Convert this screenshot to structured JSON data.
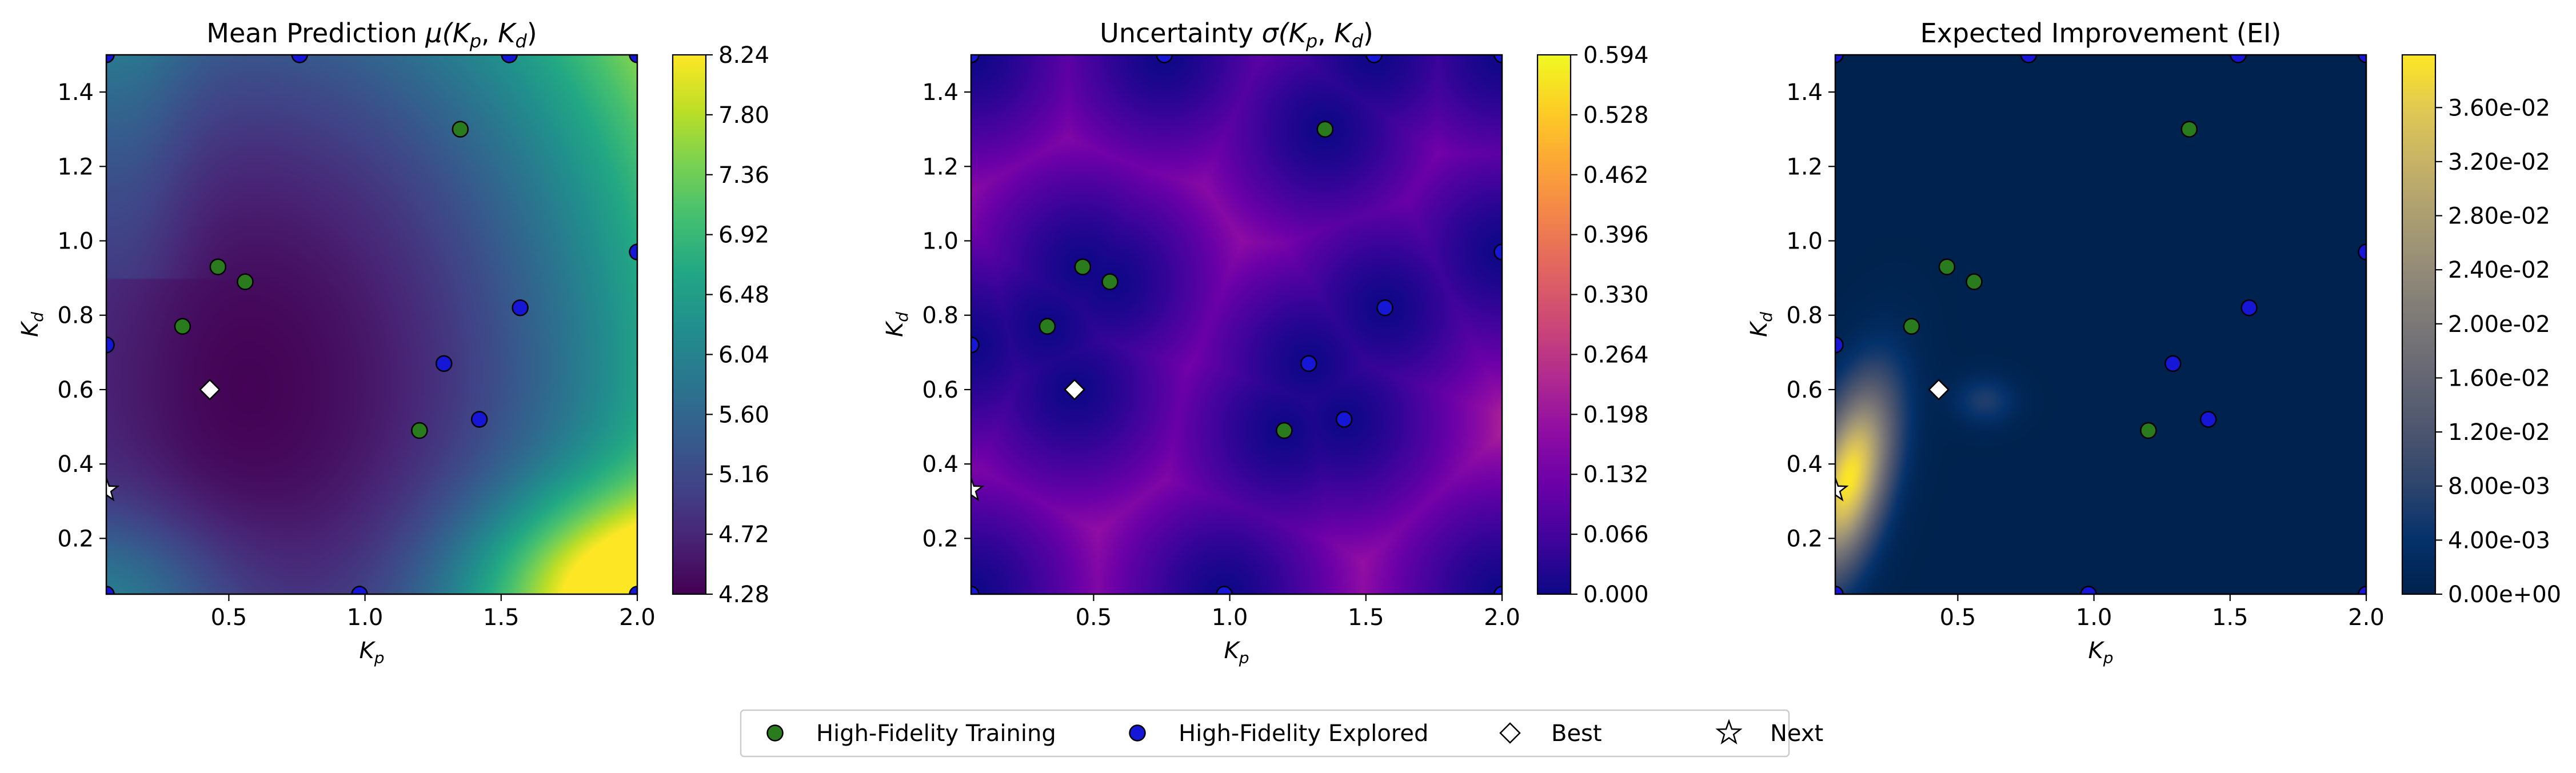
{
  "chart_data": [
    {
      "type": "heatmap",
      "title": "Mean Prediction μ(K_p, K_d)",
      "title_parts": {
        "prefix": "Mean Prediction ",
        "math": "μ(",
        "a": "K",
        "a_sub": "p",
        "sep": ", ",
        "b": "K",
        "b_sub": "d",
        "end": ")"
      },
      "xlabel": {
        "main": "K",
        "sub": "p"
      },
      "ylabel": {
        "main": "K",
        "sub": "d"
      },
      "xlim": [
        0.05,
        2.0
      ],
      "ylim": [
        0.05,
        1.5
      ],
      "xticks": [
        "0.5",
        "1.0",
        "1.5",
        "2.0"
      ],
      "xtick_values": [
        0.5,
        1.0,
        1.5,
        2.0
      ],
      "yticks": [
        "0.2",
        "0.4",
        "0.6",
        "0.8",
        "1.0",
        "1.2",
        "1.4"
      ],
      "ytick_values": [
        0.2,
        0.4,
        0.6,
        0.8,
        1.0,
        1.2,
        1.4
      ],
      "colormap": "viridis",
      "colorbar_range": [
        4.28,
        8.24
      ],
      "colorbar_ticks": [
        "4.28",
        "4.72",
        "5.16",
        "5.60",
        "6.04",
        "6.48",
        "6.92",
        "7.36",
        "7.80",
        "8.24"
      ],
      "colorbar_tick_values": [
        4.28,
        4.72,
        5.16,
        5.6,
        6.04,
        6.48,
        6.92,
        7.36,
        7.8,
        8.24
      ],
      "field": "mean"
    },
    {
      "type": "heatmap",
      "title": "Uncertainty σ(K_p, K_d)",
      "title_parts": {
        "prefix": "Uncertainty ",
        "math": "σ(",
        "a": "K",
        "a_sub": "p",
        "sep": ", ",
        "b": "K",
        "b_sub": "d",
        "end": ")"
      },
      "xlabel": {
        "main": "K",
        "sub": "p"
      },
      "ylabel": {
        "main": "K",
        "sub": "d"
      },
      "xlim": [
        0.05,
        2.0
      ],
      "ylim": [
        0.05,
        1.5
      ],
      "xticks": [
        "0.5",
        "1.0",
        "1.5",
        "2.0"
      ],
      "xtick_values": [
        0.5,
        1.0,
        1.5,
        2.0
      ],
      "yticks": [
        "0.2",
        "0.4",
        "0.6",
        "0.8",
        "1.0",
        "1.2",
        "1.4"
      ],
      "ytick_values": [
        0.2,
        0.4,
        0.6,
        0.8,
        1.0,
        1.2,
        1.4
      ],
      "colormap": "plasma",
      "colorbar_range": [
        0.0,
        0.594
      ],
      "colorbar_ticks": [
        "0.000",
        "0.066",
        "0.132",
        "0.198",
        "0.264",
        "0.330",
        "0.396",
        "0.462",
        "0.528",
        "0.594"
      ],
      "colorbar_tick_values": [
        0.0,
        0.066,
        0.132,
        0.198,
        0.264,
        0.33,
        0.396,
        0.462,
        0.528,
        0.594
      ],
      "field": "sigma"
    },
    {
      "type": "heatmap",
      "title": "Expected Improvement (EI)",
      "title_parts": {
        "prefix": "Expected Improvement (EI)",
        "math": "",
        "a": "",
        "a_sub": "",
        "sep": "",
        "b": "",
        "b_sub": "",
        "end": ""
      },
      "xlabel": {
        "main": "K",
        "sub": "p"
      },
      "ylabel": {
        "main": "K",
        "sub": "d"
      },
      "xlim": [
        0.05,
        2.0
      ],
      "ylim": [
        0.05,
        1.5
      ],
      "xticks": [
        "0.5",
        "1.0",
        "1.5",
        "2.0"
      ],
      "xtick_values": [
        0.5,
        1.0,
        1.5,
        2.0
      ],
      "yticks": [
        "0.2",
        "0.4",
        "0.6",
        "0.8",
        "1.0",
        "1.2",
        "1.4"
      ],
      "ytick_values": [
        0.2,
        0.4,
        0.6,
        0.8,
        1.0,
        1.2,
        1.4
      ],
      "colormap": "cividis",
      "colorbar_range": [
        0.0,
        0.0399
      ],
      "colorbar_ticks": [
        "0.00e+00",
        "4.00e-03",
        "8.00e-03",
        "1.20e-02",
        "1.60e-02",
        "2.00e-02",
        "2.40e-02",
        "2.80e-02",
        "3.20e-02",
        "3.60e-02"
      ],
      "colorbar_tick_values": [
        0.0,
        0.004,
        0.008,
        0.012,
        0.016,
        0.02,
        0.024,
        0.028,
        0.032,
        0.036
      ],
      "field": "ei"
    }
  ],
  "points": {
    "training": [
      [
        0.33,
        0.77
      ],
      [
        0.46,
        0.93
      ],
      [
        0.56,
        0.89
      ],
      [
        1.2,
        0.49
      ],
      [
        1.35,
        1.3
      ]
    ],
    "explored": [
      [
        0.05,
        1.5
      ],
      [
        0.76,
        1.5
      ],
      [
        1.53,
        1.5
      ],
      [
        2.0,
        1.5
      ],
      [
        0.05,
        0.72
      ],
      [
        2.0,
        0.97
      ],
      [
        1.29,
        0.67
      ],
      [
        1.57,
        0.82
      ],
      [
        1.42,
        0.52
      ],
      [
        0.98,
        0.05
      ],
      [
        0.05,
        0.05
      ],
      [
        2.0,
        0.05
      ]
    ],
    "best": [
      [
        0.43,
        0.6
      ]
    ],
    "next": [
      [
        0.05,
        0.33
      ]
    ]
  },
  "colors": {
    "training": "#2a7a1e",
    "explored": "#1616d6",
    "marker_edge": "#000000",
    "best_fill": "#ffffff",
    "next_fill": "#ffffff"
  },
  "legend": {
    "placement": "bottom-center",
    "items": [
      {
        "label": "High-Fidelity Training",
        "marker": "circle",
        "color": "#2a7a1e"
      },
      {
        "label": "High-Fidelity Explored",
        "marker": "circle",
        "color": "#1616d6"
      },
      {
        "label": "Best",
        "marker": "diamond",
        "color": "#ffffff"
      },
      {
        "label": "Next",
        "marker": "star",
        "color": "#ffffff"
      }
    ]
  }
}
